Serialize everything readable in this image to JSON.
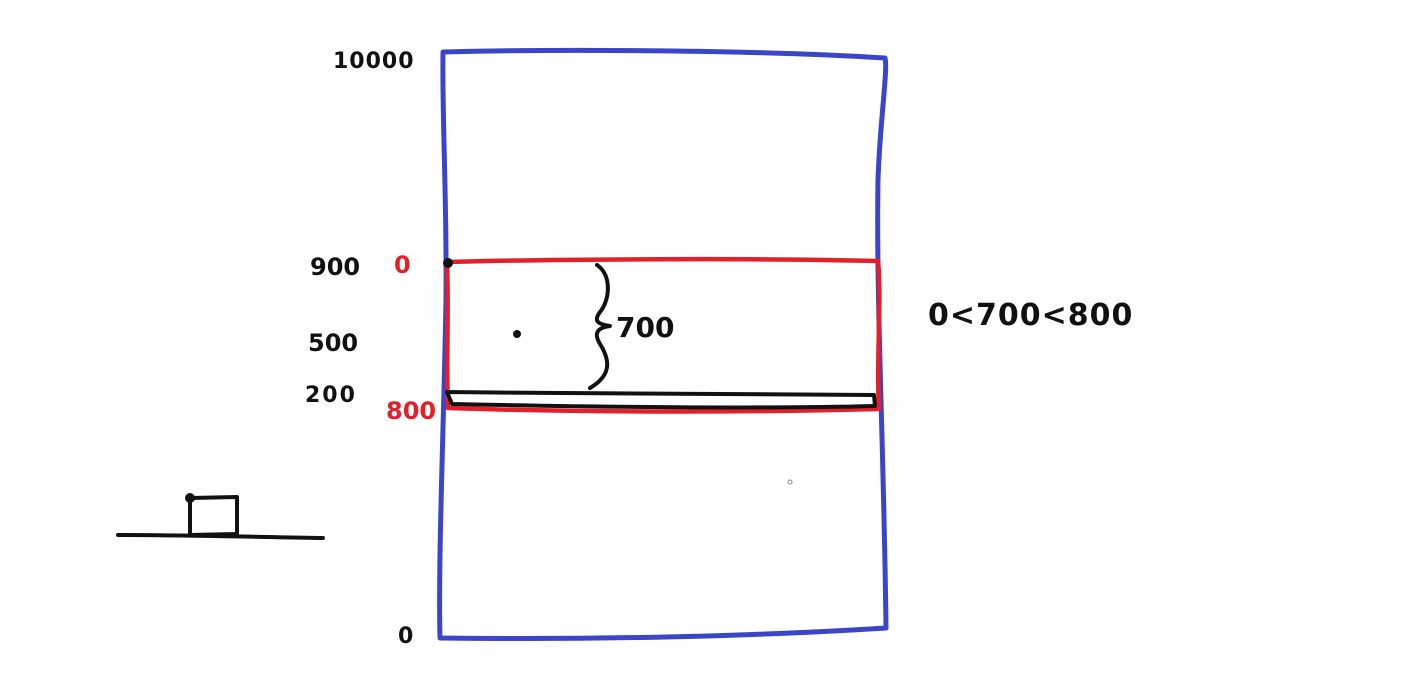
{
  "colors": {
    "outer_box": "#3b45c9",
    "inner_box": "#e3202a",
    "ink": "#111111"
  },
  "outer_labels": {
    "top": "10000",
    "upper": "900",
    "middle": "500",
    "lower": "200",
    "bottom": "0"
  },
  "inner_labels": {
    "top": "0",
    "bottom": "800"
  },
  "brace_label": "700",
  "inequality": "0<700<800"
}
